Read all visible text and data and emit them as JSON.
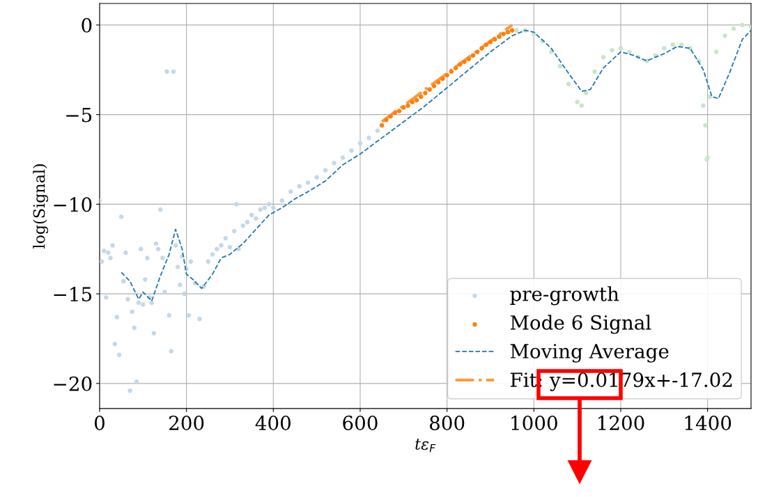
{
  "chart_data": {
    "type": "scatter",
    "xlabel": "tε$_{F}$",
    "ylabel": "log(Signal)",
    "xlim": [
      0,
      1500
    ],
    "ylim": [
      -21.4,
      1.2
    ],
    "xticks": [
      0,
      200,
      400,
      600,
      800,
      1000,
      1200,
      1400
    ],
    "yticks": [
      {
        "value": 0,
        "label": "0"
      },
      {
        "value": -5,
        "label": "−5"
      },
      {
        "value": -10,
        "label": "−10"
      },
      {
        "value": -15,
        "label": "−15"
      },
      {
        "value": -20,
        "label": "−20"
      }
    ],
    "grid": true,
    "legend": "bottom right",
    "series": [
      {
        "name": "pre-growth",
        "marker": "circle",
        "color": "#c3d8ea",
        "x": [
          0,
          5,
          10,
          15,
          20,
          25,
          30,
          35,
          40,
          45,
          50,
          55,
          60,
          65,
          70,
          75,
          80,
          85,
          90,
          95,
          100,
          105,
          110,
          115,
          120,
          125,
          130,
          135,
          140,
          145,
          150,
          155,
          160,
          165,
          170,
          175,
          180,
          185,
          190,
          195,
          200,
          205,
          210,
          220,
          230,
          240,
          250,
          260,
          270,
          280,
          290,
          300,
          310,
          315,
          320,
          330,
          340,
          350,
          360,
          370,
          380,
          390,
          400,
          420,
          440,
          460,
          480,
          500,
          520,
          540,
          560,
          580,
          600,
          620,
          640
        ],
        "values": [
          -9.8,
          -13.2,
          -12.6,
          -15.2,
          -12.7,
          -13.0,
          -12.3,
          -17.8,
          -16.3,
          -18.4,
          -10.7,
          -14.3,
          -12.7,
          -15.3,
          -20.4,
          -16.0,
          -16.9,
          -19.9,
          -15.5,
          -12.5,
          -15.6,
          -14.2,
          -13.0,
          -15.2,
          -15.5,
          -17.2,
          -12.2,
          -12.5,
          -10.3,
          -13.0,
          -14.9,
          -2.6,
          -16.2,
          -18.2,
          -2.6,
          -12.3,
          -13.5,
          -14.5,
          -12.9,
          -15.0,
          -13.6,
          -16.2,
          -13.2,
          -14.4,
          -16.4,
          -14.6,
          -13.2,
          -12.8,
          -12.5,
          -12.3,
          -11.9,
          -12.4,
          -11.5,
          -10.0,
          -12.5,
          -11.2,
          -11.0,
          -10.6,
          -10.8,
          -10.3,
          -10.2,
          -10.0,
          -10.2,
          -9.8,
          -9.3,
          -9.0,
          -8.8,
          -8.5,
          -8.1,
          -7.7,
          -7.4,
          -7.0,
          -6.6,
          -6.3,
          -5.9
        ]
      },
      {
        "name": "Mode 6 Signal",
        "marker": "circle",
        "color": "#ff7f0e",
        "x": [
          650,
          660,
          670,
          680,
          690,
          700,
          710,
          720,
          730,
          740,
          750,
          760,
          770,
          780,
          790,
          800,
          810,
          820,
          830,
          840,
          850,
          860,
          870,
          880,
          890,
          900,
          910,
          920,
          930,
          940,
          950
        ],
        "values": [
          -5.6,
          -5.3,
          -5.1,
          -4.9,
          -4.8,
          -4.6,
          -4.5,
          -4.3,
          -4.2,
          -4.0,
          -3.8,
          -3.6,
          -3.4,
          -3.2,
          -3.0,
          -2.8,
          -2.6,
          -2.4,
          -2.2,
          -2.05,
          -1.9,
          -1.7,
          -1.5,
          -1.3,
          -1.1,
          -0.95,
          -0.8,
          -0.65,
          -0.5,
          -0.4,
          -0.3
        ]
      },
      {
        "marker": "circle",
        "color": "#c8e6c8",
        "x": [
          960,
          980,
          1000,
          1020,
          1040,
          1060,
          1080,
          1100,
          1110,
          1120,
          1140,
          1160,
          1180,
          1200,
          1220,
          1240,
          1260,
          1280,
          1300,
          1320,
          1340,
          1360,
          1380,
          1390,
          1395,
          1398,
          1400,
          1405,
          1420,
          1440,
          1460,
          1480,
          1500
        ],
        "values": [
          -0.3,
          -0.3,
          -0.5,
          -0.9,
          -1.5,
          -2.3,
          -3.3,
          -4.3,
          -4.5,
          -3.8,
          -2.6,
          -1.8,
          -1.4,
          -1.3,
          -1.5,
          -1.8,
          -2.0,
          -1.7,
          -1.3,
          -1.1,
          -1.1,
          -1.3,
          -2.0,
          -4.5,
          -5.6,
          -7.5,
          -7.4,
          -4.0,
          -1.5,
          -0.6,
          -0.2,
          0.0,
          -0.1
        ]
      },
      {
        "name": "Moving Average",
        "type": "line",
        "line_style": "dashed",
        "color": "#1f77b4",
        "x": [
          50,
          70,
          90,
          100,
          120,
          140,
          160,
          175,
          190,
          200,
          215,
          235,
          260,
          280,
          300,
          330,
          360,
          390,
          420,
          450,
          480,
          520,
          560,
          600,
          650,
          700,
          750,
          800,
          850,
          900,
          950,
          980,
          1000,
          1040,
          1080,
          1110,
          1130,
          1160,
          1200,
          1230,
          1260,
          1300,
          1330,
          1360,
          1390,
          1410,
          1425,
          1450,
          1480,
          1500
        ],
        "values": [
          -13.8,
          -14.3,
          -15.3,
          -14.9,
          -15.4,
          -14.0,
          -12.8,
          -11.4,
          -12.5,
          -13.9,
          -14.2,
          -14.7,
          -13.9,
          -13.0,
          -12.8,
          -12.2,
          -11.4,
          -10.6,
          -10.2,
          -9.7,
          -9.3,
          -8.7,
          -7.8,
          -7.2,
          -6.3,
          -5.4,
          -4.5,
          -3.5,
          -2.5,
          -1.5,
          -0.6,
          -0.3,
          -0.4,
          -1.3,
          -2.7,
          -3.7,
          -3.6,
          -2.4,
          -1.5,
          -1.7,
          -2.0,
          -1.6,
          -1.2,
          -1.3,
          -2.5,
          -4.0,
          -4.1,
          -2.7,
          -0.8,
          -0.3
        ]
      },
      {
        "name": "Fit: y=0.0179x+-17.02",
        "type": "line",
        "line_style": "dashdot",
        "color": "#ff9a3c",
        "x": [
          650,
          950
        ],
        "values": [
          -5.4,
          0.0
        ]
      }
    ]
  }
}
